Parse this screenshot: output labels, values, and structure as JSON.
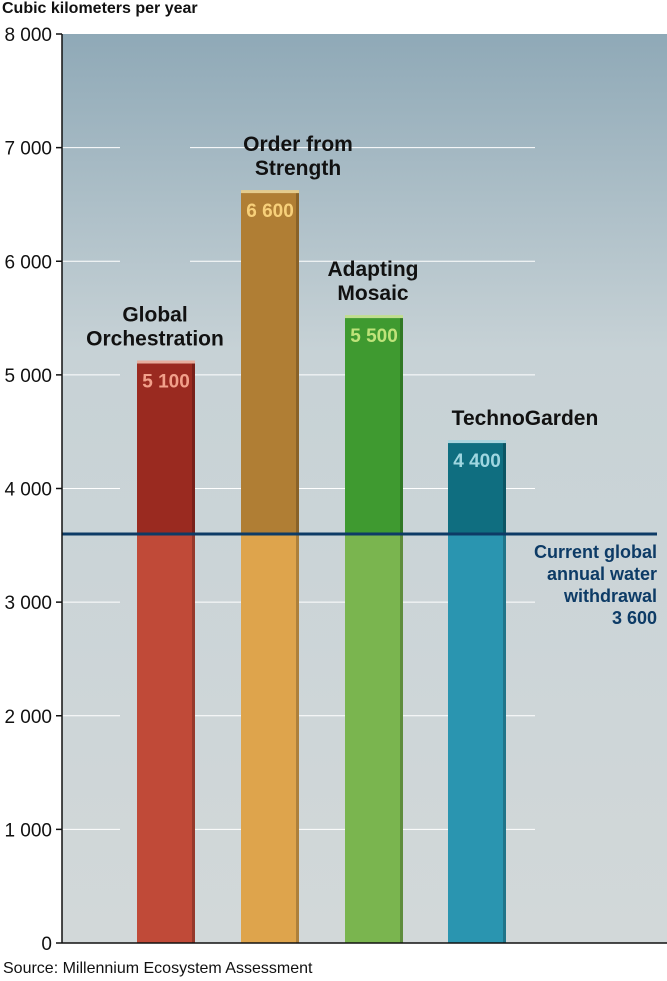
{
  "chart_data": {
    "type": "bar",
    "ylabel": "Cubic kilometers  per year",
    "ylim": [
      0,
      8000
    ],
    "yticks": [
      0,
      1000,
      2000,
      3000,
      4000,
      5000,
      6000,
      7000,
      8000
    ],
    "ytick_labels": [
      "0",
      "1 000",
      "2 000",
      "3 000",
      "4 000",
      "5 000",
      "6 000",
      "7 000",
      "8 000"
    ],
    "categories": [
      [
        "Global",
        "Orchestration"
      ],
      [
        "Order from",
        "Strength"
      ],
      [
        "Adapting",
        "Mosaic"
      ],
      [
        "TechnoGarden"
      ]
    ],
    "values": [
      5100,
      6600,
      5500,
      4400
    ],
    "value_labels": [
      "5 100",
      "6 600",
      "5 500",
      "4 400"
    ],
    "reference_line": {
      "value": 3600,
      "label": [
        "Current global",
        "annual water",
        "withdrawal",
        "3 600"
      ],
      "color": "#0d3b66"
    },
    "bar_colors": [
      {
        "top": "#9a2a20",
        "bottom": "#c04a38",
        "label": "#f2a08a"
      },
      {
        "top": "#b07e34",
        "bottom": "#dea44c",
        "label": "#f7d07a"
      },
      {
        "top": "#3f9a30",
        "bottom": "#7ab54f",
        "label": "#bfe37a"
      },
      {
        "top": "#0f6e80",
        "bottom": "#2a95b0",
        "label": "#9fd6e0"
      }
    ],
    "grid": true
  },
  "source": "Source: Millennium Ecosystem Assessment"
}
